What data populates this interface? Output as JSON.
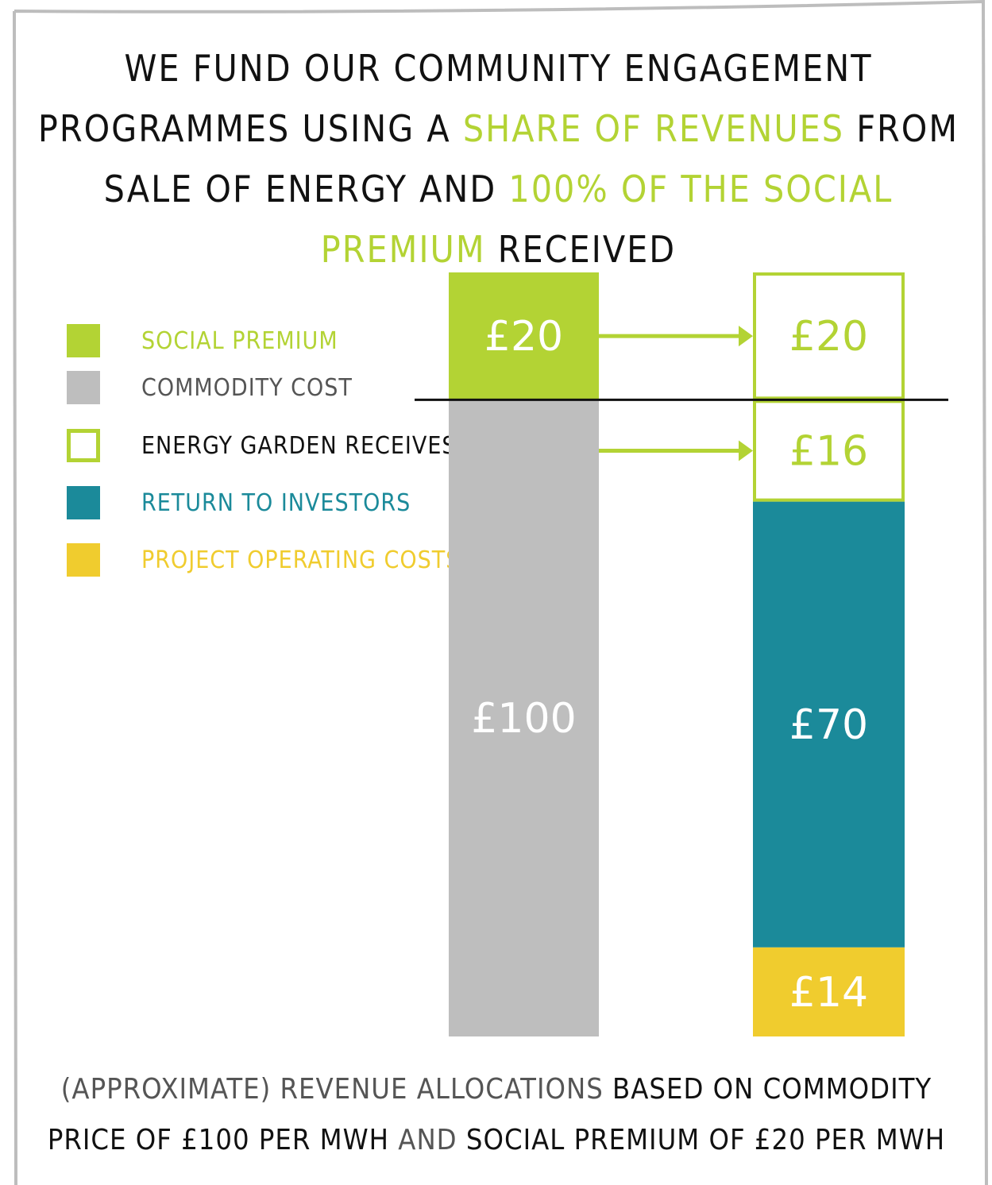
{
  "title": {
    "parts": [
      {
        "text": "WE FUND OUR COMMUNITY ENGAGEMENT PROGRAMMES USING A ",
        "highlight": false
      },
      {
        "text": "SHARE OF REVENUES",
        "highlight": true
      },
      {
        "text": " FROM SALE OF ENERGY AND ",
        "highlight": false
      },
      {
        "text": "100% OF THE SOCIAL PREMIUM",
        "highlight": true
      },
      {
        "text": " RECEIVED",
        "highlight": false
      }
    ]
  },
  "legend": [
    {
      "label": "SOCIAL PREMIUM",
      "color": "#b3d334",
      "style": "filled"
    },
    {
      "label": "COMMODITY COST",
      "color": "#bebebe",
      "style": "filled"
    },
    {
      "label": "ENERGY GARDEN RECEIVES",
      "color": "#b3d334",
      "style": "outline"
    },
    {
      "label": "RETURN TO INVESTORS",
      "color": "#1b8a9a",
      "style": "filled"
    },
    {
      "label": "PROJECT OPERATING COSTS",
      "color": "#f0cc2e",
      "style": "filled"
    }
  ],
  "legend_text_colors": [
    "#b3d334",
    "#555555",
    "#111111",
    "#1b8a9a",
    "#f0cc2e"
  ],
  "chart_data": {
    "type": "bar",
    "stacked": true,
    "categories": [
      "",
      ""
    ],
    "value_prefix": "£",
    "bars": [
      {
        "segments": [
          {
            "series": "COMMODITY COST",
            "value": 100,
            "label": "£100",
            "color": "#bebebe",
            "style": "filled"
          },
          {
            "series": "SOCIAL PREMIUM",
            "value": 20,
            "label": "£20",
            "color": "#b3d334",
            "style": "filled"
          }
        ]
      },
      {
        "segments": [
          {
            "series": "PROJECT OPERATING COSTS",
            "value": 14,
            "label": "£14",
            "color": "#f0cc2e",
            "style": "filled"
          },
          {
            "series": "RETURN TO INVESTORS",
            "value": 70,
            "label": "£70",
            "color": "#1b8a9a",
            "style": "filled"
          },
          {
            "series": "ENERGY GARDEN RECEIVES",
            "value": 16,
            "label": "£16",
            "color": "#b3d334",
            "style": "outline"
          },
          {
            "series": "ENERGY GARDEN RECEIVES",
            "value": 20,
            "label": "£20",
            "color": "#b3d334",
            "style": "outline"
          }
        ]
      }
    ],
    "reference_line": {
      "value": 100
    },
    "arrows": [
      {
        "from_bar": 0,
        "to_bar": 1,
        "at_value": 110
      },
      {
        "from_bar": 0,
        "to_bar": 1,
        "at_value": 92
      }
    ],
    "ylim": [
      0,
      120
    ],
    "grid": false,
    "legend_position": "left"
  },
  "footnote": {
    "parts": [
      {
        "text": "(APPROXIMATE) REVENUE ALLOCATIONS",
        "style": "lite"
      },
      {
        "text": " BASED ON COMMODITY PRICE OF £100 PER MWH",
        "style": "bold"
      },
      {
        "text": " AND",
        "style": "lite"
      },
      {
        "text": " SOCIAL PREMIUM OF £20 PER MWH",
        "style": "bold"
      }
    ]
  }
}
